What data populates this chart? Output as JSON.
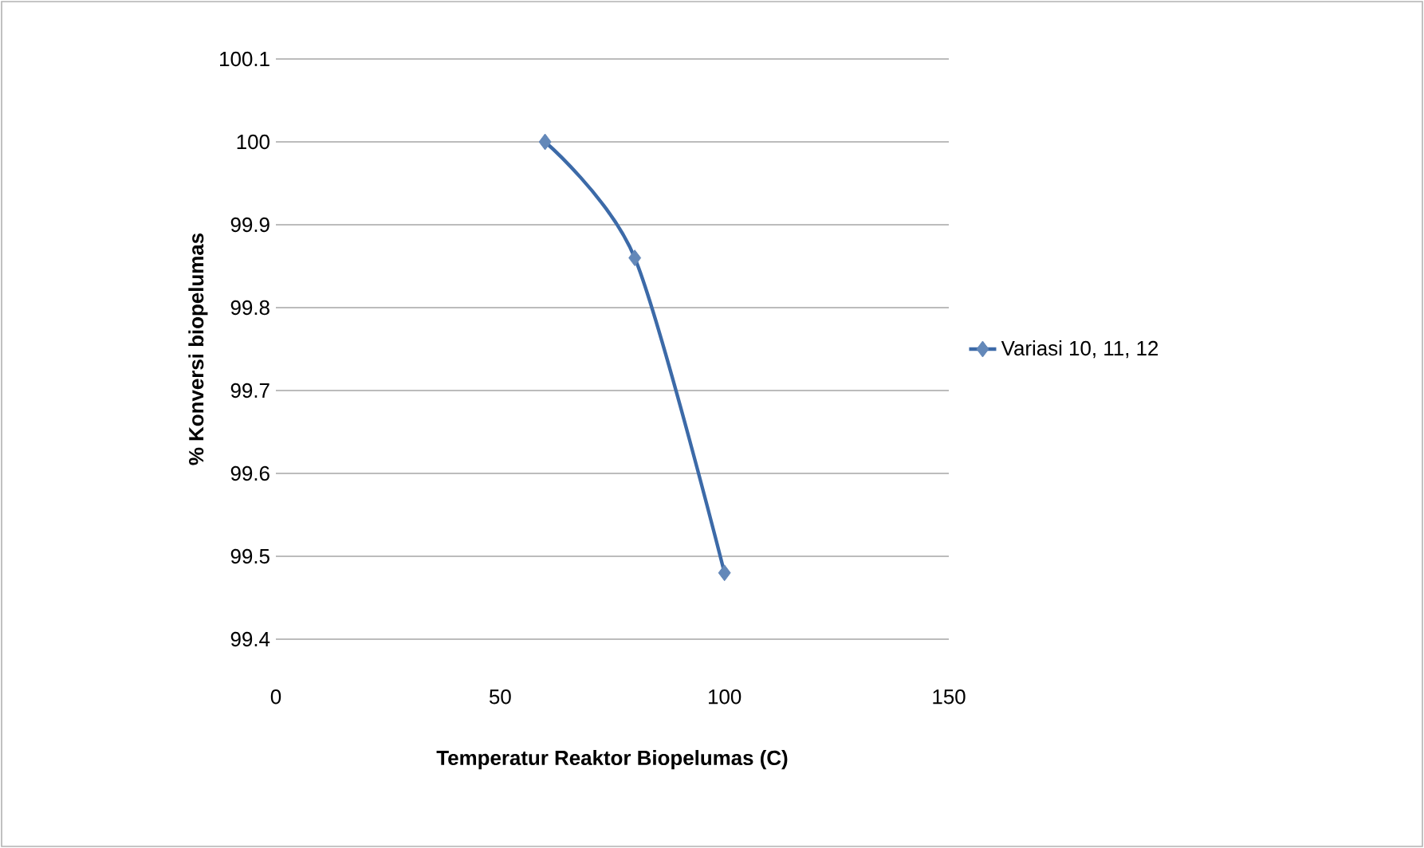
{
  "chart_data": {
    "type": "line",
    "xlabel": "Temperatur  Reaktor Biopelumas (C)",
    "ylabel": "% Konversi biopelumas",
    "x": [
      60,
      80,
      100
    ],
    "series": [
      {
        "name": "Variasi 10, 11, 12",
        "color": "#3c6aa8",
        "values": [
          100,
          99.86,
          99.48
        ]
      }
    ],
    "xlim": [
      0,
      150
    ],
    "xticks": [
      0,
      50,
      100,
      150
    ],
    "ylim": [
      99.4,
      100.1
    ],
    "yticks": [
      99.4,
      99.5,
      99.6,
      99.7,
      99.8,
      99.9,
      100,
      100.1
    ],
    "grid": "y",
    "legend": "right",
    "marker": "diamond"
  }
}
